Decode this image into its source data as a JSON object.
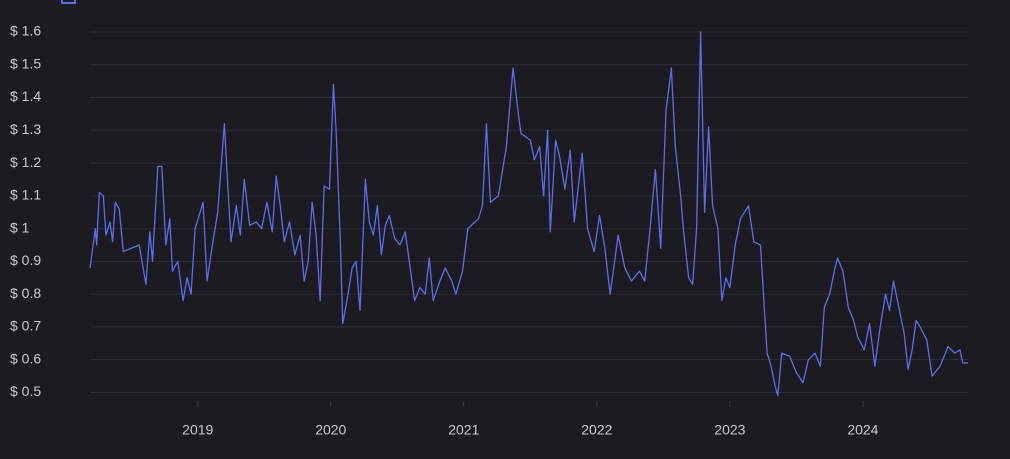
{
  "chart_data": {
    "type": "line",
    "x": [
      2018.19,
      2018.23,
      2018.24,
      2018.26,
      2018.29,
      2018.31,
      2018.34,
      2018.36,
      2018.38,
      2018.41,
      2018.44,
      2018.56,
      2018.61,
      2018.64,
      2018.66,
      2018.7,
      2018.73,
      2018.76,
      2018.79,
      2018.81,
      2018.85,
      2018.89,
      2018.92,
      2018.95,
      2018.98,
      2019.04,
      2019.07,
      2019.11,
      2019.15,
      2019.2,
      2019.23,
      2019.25,
      2019.29,
      2019.32,
      2019.35,
      2019.39,
      2019.44,
      2019.48,
      2019.52,
      2019.56,
      2019.59,
      2019.62,
      2019.65,
      2019.69,
      2019.73,
      2019.77,
      2019.8,
      2019.83,
      2019.86,
      2019.89,
      2019.92,
      2019.95,
      2019.99,
      2020.02,
      2020.04,
      2020.07,
      2020.09,
      2020.13,
      2020.16,
      2020.19,
      2020.22,
      2020.26,
      2020.29,
      2020.32,
      2020.35,
      2020.38,
      2020.41,
      2020.44,
      2020.48,
      2020.52,
      2020.56,
      2020.59,
      2020.63,
      2020.67,
      2020.71,
      2020.74,
      2020.77,
      2020.82,
      2020.86,
      2020.91,
      2020.94,
      2020.99,
      2021.03,
      2021.11,
      2021.14,
      2021.17,
      2021.2,
      2021.26,
      2021.32,
      2021.37,
      2021.41,
      2021.43,
      2021.5,
      2021.53,
      2021.57,
      2021.6,
      2021.63,
      2021.65,
      2021.69,
      2021.72,
      2021.76,
      2021.8,
      2021.83,
      2021.89,
      2021.93,
      2021.98,
      2022.02,
      2022.06,
      2022.1,
      2022.16,
      2022.21,
      2022.26,
      2022.32,
      2022.36,
      2022.4,
      2022.44,
      2022.48,
      2022.52,
      2022.56,
      2022.59,
      2022.63,
      2022.65,
      2022.69,
      2022.72,
      2022.75,
      2022.78,
      2022.81,
      2022.84,
      2022.87,
      2022.91,
      2022.94,
      2022.97,
      2023.0,
      2023.04,
      2023.08,
      2023.14,
      2023.18,
      2023.23,
      2023.26,
      2023.28,
      2023.31,
      2023.34,
      2023.36,
      2023.39,
      2023.45,
      2023.5,
      2023.55,
      2023.59,
      2023.64,
      2023.68,
      2023.71,
      2023.75,
      2023.79,
      2023.81,
      2023.85,
      2023.89,
      2023.93,
      2023.96,
      2024.01,
      2024.05,
      2024.09,
      2024.13,
      2024.17,
      2024.2,
      2024.23,
      2024.27,
      2024.31,
      2024.34,
      2024.37,
      2024.4,
      2024.43,
      2024.48,
      2024.52,
      2024.58,
      2024.64,
      2024.69,
      2024.73,
      2024.75,
      2024.79
    ],
    "values": [
      0.88,
      1.0,
      0.95,
      1.11,
      1.1,
      0.98,
      1.02,
      0.96,
      1.08,
      1.06,
      0.93,
      0.95,
      0.83,
      0.99,
      0.9,
      1.19,
      1.19,
      0.95,
      1.03,
      0.87,
      0.9,
      0.78,
      0.85,
      0.8,
      1.0,
      1.08,
      0.84,
      0.95,
      1.05,
      1.32,
      1.1,
      0.96,
      1.07,
      0.98,
      1.15,
      1.01,
      1.02,
      1.0,
      1.08,
      0.99,
      1.16,
      1.07,
      0.96,
      1.02,
      0.92,
      0.98,
      0.84,
      0.9,
      1.08,
      0.98,
      0.78,
      1.13,
      1.12,
      1.44,
      1.3,
      0.98,
      0.71,
      0.8,
      0.88,
      0.9,
      0.75,
      1.15,
      1.02,
      0.98,
      1.07,
      0.92,
      1.01,
      1.04,
      0.97,
      0.95,
      0.99,
      0.9,
      0.78,
      0.82,
      0.8,
      0.91,
      0.78,
      0.84,
      0.88,
      0.84,
      0.8,
      0.87,
      1.0,
      1.03,
      1.07,
      1.32,
      1.08,
      1.1,
      1.25,
      1.49,
      1.35,
      1.29,
      1.27,
      1.21,
      1.25,
      1.1,
      1.3,
      0.99,
      1.27,
      1.22,
      1.12,
      1.24,
      1.02,
      1.23,
      1.0,
      0.93,
      1.04,
      0.94,
      0.8,
      0.98,
      0.88,
      0.84,
      0.87,
      0.84,
      1.0,
      1.18,
      0.94,
      1.36,
      1.49,
      1.25,
      1.1,
      1.0,
      0.85,
      0.83,
      1.0,
      1.6,
      1.05,
      1.31,
      1.07,
      1.0,
      0.78,
      0.85,
      0.82,
      0.95,
      1.03,
      1.07,
      0.96,
      0.95,
      0.75,
      0.62,
      0.58,
      0.52,
      0.49,
      0.62,
      0.61,
      0.56,
      0.53,
      0.6,
      0.62,
      0.58,
      0.76,
      0.8,
      0.88,
      0.91,
      0.87,
      0.76,
      0.72,
      0.67,
      0.63,
      0.71,
      0.58,
      0.7,
      0.8,
      0.75,
      0.84,
      0.76,
      0.68,
      0.57,
      0.63,
      0.72,
      0.7,
      0.66,
      0.55,
      0.58,
      0.64,
      0.62,
      0.63,
      0.59,
      0.59
    ],
    "color": "#5b6ee8",
    "xlim": [
      2018.19,
      2024.79
    ],
    "xticks": [
      2019,
      2020,
      2021,
      2022,
      2023,
      2024
    ],
    "ylim": [
      0.48,
      1.6
    ],
    "yticks": [
      {
        "value": 0.5,
        "label": "$ 0.5"
      },
      {
        "value": 0.6,
        "label": "$ 0.6"
      },
      {
        "value": 0.7,
        "label": "$ 0.7"
      },
      {
        "value": 0.8,
        "label": "$ 0.8"
      },
      {
        "value": 0.9,
        "label": "$ 0.9"
      },
      {
        "value": 1,
        "label": "$ 1"
      },
      {
        "value": 1.1,
        "label": "$ 1.1"
      },
      {
        "value": 1.2,
        "label": "$ 1.2"
      },
      {
        "value": 1.3,
        "label": "$ 1.3"
      },
      {
        "value": 1.4,
        "label": "$ 1.4"
      },
      {
        "value": 1.5,
        "label": "$ 1.5"
      },
      {
        "value": 1.6,
        "label": "$ 1.6"
      }
    ],
    "grid": true
  }
}
